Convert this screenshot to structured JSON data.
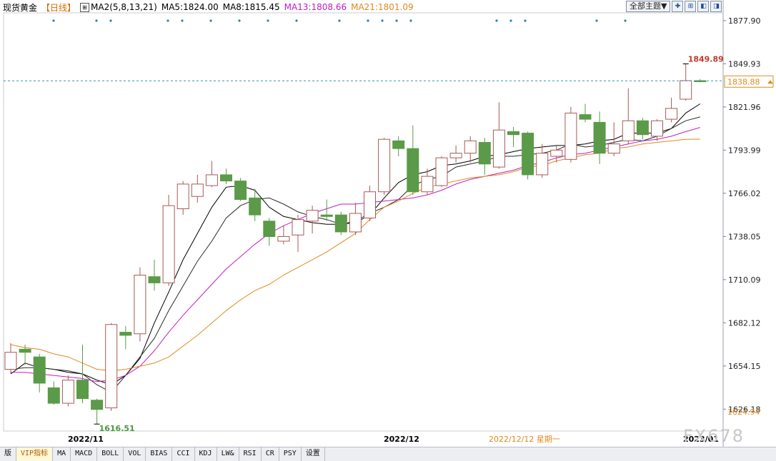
{
  "header": {
    "title": "现货黄金",
    "period": "【日线】",
    "ma_label": "MA2(5,8,13,21)",
    "ma5": "MA5:1824.00",
    "ma8": "MA8:1815.45",
    "ma13": "MA13:1808.66",
    "ma21": "MA21:1801.09"
  },
  "toolbar": {
    "theme_label": "全部主题▼"
  },
  "tabs": [
    "版",
    "VIP指标",
    "MA",
    "MACD",
    "BOLL",
    "VOL",
    "BIAS",
    "CCI",
    "KDJ",
    "LW&",
    "RSI",
    "CR",
    "PSY",
    "设置"
  ],
  "colors": {
    "up": "#a85a55",
    "down": "#5a9a48",
    "ma5": "#000000",
    "ma8": "#2a2a2a",
    "ma13": "#c020c0",
    "ma21": "#e08a1e"
  },
  "chart_data": {
    "type": "candlestick",
    "ylim": [
      1612,
      1882
    ],
    "yticks": [
      "1877.90",
      "1849.93",
      "1821.96",
      "1793.99",
      "1766.02",
      "1738.05",
      "1710.09",
      "1682.12",
      "1654.15",
      "1626.18"
    ],
    "current_price": "1838.88",
    "low_marker": "1624.94",
    "max_label": "1849.89",
    "min_label": "1616.51",
    "xlabels": [
      "2022/11",
      "2022/12",
      "2022/12/12 星期一",
      "2023/01"
    ],
    "candles": [
      {
        "o": 1652,
        "h": 1669,
        "l": 1649,
        "c": 1663
      },
      {
        "o": 1665,
        "h": 1668,
        "l": 1655,
        "c": 1663
      },
      {
        "o": 1660,
        "h": 1662,
        "l": 1637,
        "c": 1643
      },
      {
        "o": 1640,
        "h": 1644,
        "l": 1629,
        "c": 1630
      },
      {
        "o": 1630,
        "h": 1648,
        "l": 1628,
        "c": 1645
      },
      {
        "o": 1645,
        "h": 1668,
        "l": 1630,
        "c": 1633
      },
      {
        "o": 1632,
        "h": 1633,
        "l": 1616.51,
        "c": 1626
      },
      {
        "o": 1627,
        "h": 1682,
        "l": 1625,
        "c": 1681
      },
      {
        "o": 1676,
        "h": 1680,
        "l": 1665,
        "c": 1674
      },
      {
        "o": 1675,
        "h": 1718,
        "l": 1670,
        "c": 1713
      },
      {
        "o": 1712,
        "h": 1723,
        "l": 1703,
        "c": 1708
      },
      {
        "o": 1708,
        "h": 1765,
        "l": 1706,
        "c": 1758
      },
      {
        "o": 1756,
        "h": 1774,
        "l": 1752,
        "c": 1772
      },
      {
        "o": 1764,
        "h": 1778,
        "l": 1760,
        "c": 1772
      },
      {
        "o": 1771,
        "h": 1787,
        "l": 1770,
        "c": 1778
      },
      {
        "o": 1778,
        "h": 1782,
        "l": 1772,
        "c": 1774
      },
      {
        "o": 1774,
        "h": 1776,
        "l": 1761,
        "c": 1762
      },
      {
        "o": 1763,
        "h": 1769,
        "l": 1748,
        "c": 1752
      },
      {
        "o": 1748,
        "h": 1750,
        "l": 1732,
        "c": 1738
      },
      {
        "o": 1735,
        "h": 1745,
        "l": 1733,
        "c": 1738
      },
      {
        "o": 1739,
        "h": 1752,
        "l": 1728,
        "c": 1749
      },
      {
        "o": 1748,
        "h": 1758,
        "l": 1740,
        "c": 1755
      },
      {
        "o": 1752,
        "h": 1762,
        "l": 1748,
        "c": 1751
      },
      {
        "o": 1752,
        "h": 1754,
        "l": 1739,
        "c": 1741
      },
      {
        "o": 1741,
        "h": 1760,
        "l": 1739,
        "c": 1753
      },
      {
        "o": 1750,
        "h": 1771,
        "l": 1748,
        "c": 1767
      },
      {
        "o": 1767,
        "h": 1802,
        "l": 1765,
        "c": 1801
      },
      {
        "o": 1800,
        "h": 1803,
        "l": 1790,
        "c": 1795
      },
      {
        "o": 1795,
        "h": 1810,
        "l": 1765,
        "c": 1767
      },
      {
        "o": 1767,
        "h": 1782,
        "l": 1765,
        "c": 1777
      },
      {
        "o": 1771,
        "h": 1790,
        "l": 1770,
        "c": 1789
      },
      {
        "o": 1789,
        "h": 1797,
        "l": 1786,
        "c": 1792
      },
      {
        "o": 1792,
        "h": 1803,
        "l": 1786,
        "c": 1800
      },
      {
        "o": 1799,
        "h": 1802,
        "l": 1778,
        "c": 1785
      },
      {
        "o": 1783,
        "h": 1825,
        "l": 1782,
        "c": 1807
      },
      {
        "o": 1806,
        "h": 1809,
        "l": 1796,
        "c": 1804
      },
      {
        "o": 1805,
        "h": 1806,
        "l": 1775,
        "c": 1778
      },
      {
        "o": 1778,
        "h": 1798,
        "l": 1776,
        "c": 1792
      },
      {
        "o": 1790,
        "h": 1797,
        "l": 1786,
        "c": 1794
      },
      {
        "o": 1788,
        "h": 1822,
        "l": 1786,
        "c": 1818
      },
      {
        "o": 1817,
        "h": 1824,
        "l": 1812,
        "c": 1814
      },
      {
        "o": 1812,
        "h": 1819,
        "l": 1785,
        "c": 1792
      },
      {
        "o": 1792,
        "h": 1812,
        "l": 1790,
        "c": 1798
      },
      {
        "o": 1800,
        "h": 1834,
        "l": 1798,
        "c": 1813
      },
      {
        "o": 1813,
        "h": 1815,
        "l": 1801,
        "c": 1804
      },
      {
        "o": 1803,
        "h": 1814,
        "l": 1800,
        "c": 1813
      },
      {
        "o": 1814,
        "h": 1828,
        "l": 1812,
        "c": 1821
      },
      {
        "o": 1827,
        "h": 1849.89,
        "l": 1826,
        "c": 1839
      },
      {
        "o": 1839,
        "h": 1840,
        "l": 1838,
        "c": 1838.88
      }
    ],
    "series": [
      {
        "name": "MA5",
        "values": [
          1649,
          1656,
          1653,
          1652,
          1650,
          1649,
          1645,
          1642,
          1648,
          1659,
          1682,
          1702,
          1723,
          1740,
          1757,
          1770,
          1771,
          1768,
          1757,
          1751,
          1749,
          1747,
          1746,
          1746,
          1747,
          1752,
          1763,
          1773,
          1778,
          1780,
          1784,
          1785,
          1787,
          1790,
          1791,
          1793,
          1795,
          1796,
          1797,
          1797,
          1798,
          1800,
          1801,
          1805,
          1805,
          1805,
          1808,
          1818,
          1824
        ]
      },
      {
        "name": "MA8",
        "values": [
          1652,
          1653,
          1653,
          1652,
          1651,
          1649,
          1642,
          1637,
          1648,
          1660,
          1672,
          1690,
          1706,
          1722,
          1735,
          1750,
          1758,
          1762,
          1763,
          1759,
          1754,
          1751,
          1749,
          1746,
          1748,
          1753,
          1757,
          1762,
          1771,
          1775,
          1777,
          1783,
          1785,
          1787,
          1790,
          1790,
          1791,
          1792,
          1794,
          1798,
          1796,
          1797,
          1799,
          1801,
          1800,
          1803,
          1808,
          1813,
          1815.45
        ]
      },
      {
        "name": "MA13",
        "values": [
          1650,
          1650,
          1649,
          1648,
          1647,
          1646,
          1644,
          1645,
          1648,
          1654,
          1664,
          1676,
          1687,
          1697,
          1707,
          1717,
          1725,
          1733,
          1740,
          1745,
          1749,
          1753,
          1756,
          1759,
          1759,
          1760,
          1761,
          1762,
          1763,
          1765,
          1768,
          1772,
          1775,
          1777,
          1779,
          1781,
          1784,
          1786,
          1789,
          1791,
          1792,
          1794,
          1796,
          1798,
          1800,
          1801,
          1803,
          1806,
          1808.66
        ]
      },
      {
        "name": "MA21",
        "values": [
          1668,
          1666,
          1665,
          1662,
          1660,
          1656,
          1652,
          1651,
          1652,
          1654,
          1656,
          1660,
          1667,
          1674,
          1682,
          1690,
          1697,
          1703,
          1707,
          1713,
          1718,
          1723,
          1728,
          1734,
          1740,
          1749,
          1757,
          1761,
          1766,
          1770,
          1772,
          1774,
          1776,
          1777,
          1778,
          1780,
          1783,
          1784,
          1787,
          1789,
          1791,
          1792,
          1795,
          1796,
          1798,
          1799,
          1800,
          1801,
          1801.09
        ]
      }
    ]
  },
  "watermark": "FX678"
}
